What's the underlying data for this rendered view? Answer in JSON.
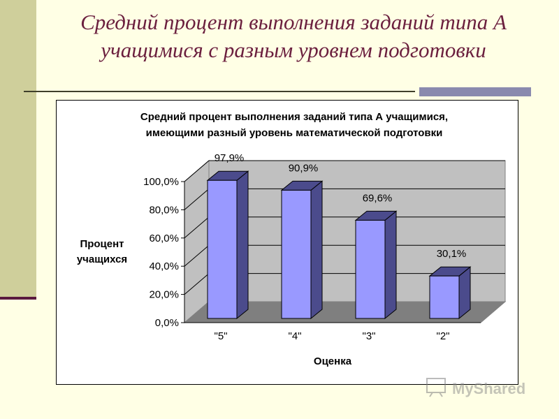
{
  "slide": {
    "title": "Средний процент выполнения заданий типа А учащимися с разным уровнем подготовки",
    "watermark_text": "MyShared"
  },
  "colors": {
    "background": "#FFFFE5",
    "sidebar": "#CFCF9B",
    "title": "#6B1F3E",
    "bar_front": "#9999FF",
    "bar_side": "#4B4B8C",
    "plot_wall": "#C0C0C0",
    "plot_floor": "#7F7F7F"
  },
  "chart_data": {
    "type": "bar",
    "title_lines": [
      "Средний процент выполнения заданий типа А учащимися,",
      "имеющими разный уровень математической подготовки"
    ],
    "xlabel": "Оценка",
    "ylabel_lines": [
      "Процент",
      "учащихся"
    ],
    "categories": [
      "\"5\"",
      "\"4\"",
      "\"3\"",
      "\"2\""
    ],
    "values": [
      97.9,
      90.9,
      69.6,
      30.1
    ],
    "data_labels": [
      "97,9%",
      "90,9%",
      "69,6%",
      "30,1%"
    ],
    "y_ticks": [
      "0,0%",
      "20,0%",
      "40,0%",
      "60,0%",
      "80,0%",
      "100,0%"
    ],
    "ylim": [
      0,
      100
    ],
    "grid": true,
    "legend": "none",
    "style": "3d-column"
  }
}
